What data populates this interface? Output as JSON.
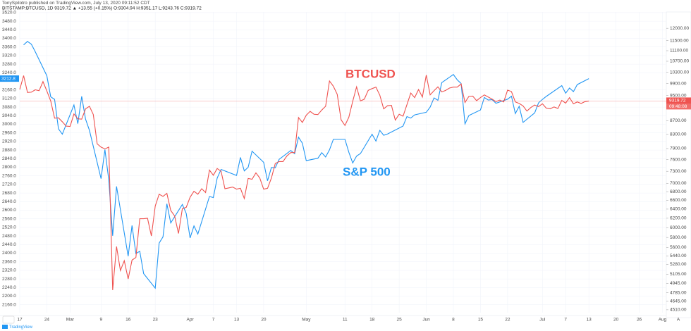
{
  "header": {
    "author_line": "TonySpilotro published on TradingView.com, July 13, 2020 09:11:52 CDT",
    "symbol_line": "BITSTAMP:BTCUSD, 1D  9319.72 ▲ +13.55 (+0.15%)  O:9304.94 H:9351.17 L:9243.76 C:9319.72"
  },
  "footer": {
    "brand": "TradingView",
    "scale_button": "A",
    "countdown": "09:48:08"
  },
  "chart_data": {
    "type": "line",
    "grid": true,
    "y2scale": "log",
    "xlim": [
      "2020-02-17",
      "2020-08-02"
    ],
    "xticks": [
      {
        "value": "2020-02-17",
        "label": "17"
      },
      {
        "value": "2020-02-24",
        "label": "24"
      },
      {
        "value": "2020-03-01",
        "label": "Mar"
      },
      {
        "value": "2020-03-09",
        "label": "9"
      },
      {
        "value": "2020-03-16",
        "label": "16"
      },
      {
        "value": "2020-03-23",
        "label": "23"
      },
      {
        "value": "2020-04-01",
        "label": "Apr"
      },
      {
        "value": "2020-04-07",
        "label": "7"
      },
      {
        "value": "2020-04-13",
        "label": "13"
      },
      {
        "value": "2020-04-20",
        "label": "20"
      },
      {
        "value": "2020-05-01",
        "label": "May"
      },
      {
        "value": "2020-05-11",
        "label": "11"
      },
      {
        "value": "2020-05-18",
        "label": "18"
      },
      {
        "value": "2020-05-25",
        "label": "25"
      },
      {
        "value": "2020-06-01",
        "label": "Jun"
      },
      {
        "value": "2020-06-08",
        "label": "8"
      },
      {
        "value": "2020-06-15",
        "label": "15"
      },
      {
        "value": "2020-06-22",
        "label": "22"
      },
      {
        "value": "2020-07-01",
        "label": "Jul"
      },
      {
        "value": "2020-07-07",
        "label": "7"
      },
      {
        "value": "2020-07-13",
        "label": "13"
      },
      {
        "value": "2020-07-20",
        "label": "20"
      },
      {
        "value": "2020-07-26",
        "label": "26"
      },
      {
        "value": "2020-08-01",
        "label": "Aug"
      }
    ],
    "ylim": [
      2123,
      3523
    ],
    "yticks": [
      {
        "value": 3520,
        "label": "3520.0"
      },
      {
        "value": 3480,
        "label": "3480.0"
      },
      {
        "value": 3440,
        "label": "3440.0"
      },
      {
        "value": 3400,
        "label": "3400.0"
      },
      {
        "value": 3360,
        "label": "3360.0"
      },
      {
        "value": 3320,
        "label": "3320.0"
      },
      {
        "value": 3280,
        "label": "3280.0"
      },
      {
        "value": 3240,
        "label": "3240.0"
      },
      {
        "value": 3160,
        "label": "3160.0"
      },
      {
        "value": 3120,
        "label": "3120.0"
      },
      {
        "value": 3080,
        "label": "3080.0"
      },
      {
        "value": 3040,
        "label": "3040.0"
      },
      {
        "value": 3000,
        "label": "3000.0"
      },
      {
        "value": 2960,
        "label": "2960.0"
      },
      {
        "value": 2920,
        "label": "2920.0"
      },
      {
        "value": 2880,
        "label": "2880.0"
      },
      {
        "value": 2840,
        "label": "2840.0"
      },
      {
        "value": 2800,
        "label": "2800.0"
      },
      {
        "value": 2760,
        "label": "2760.0"
      },
      {
        "value": 2720,
        "label": "2720.0"
      },
      {
        "value": 2680,
        "label": "2680.0"
      },
      {
        "value": 2640,
        "label": "2640.0"
      },
      {
        "value": 2600,
        "label": "2600.0"
      },
      {
        "value": 2560,
        "label": "2560.0"
      },
      {
        "value": 2520,
        "label": "2520.0"
      },
      {
        "value": 2480,
        "label": "2480.0"
      },
      {
        "value": 2440,
        "label": "2440.0"
      },
      {
        "value": 2400,
        "label": "2400.0"
      },
      {
        "value": 2360,
        "label": "2360.0"
      },
      {
        "value": 2320,
        "label": "2320.0"
      },
      {
        "value": 2280,
        "label": "2280.0"
      },
      {
        "value": 2240,
        "label": "2240.0"
      },
      {
        "value": 2200,
        "label": "2200.0"
      },
      {
        "value": 2160,
        "label": "2160.0"
      }
    ],
    "y2lim": [
      4465,
      12700
    ],
    "y2ticks": [
      {
        "value": 12000,
        "label": "12000.00"
      },
      {
        "value": 11500,
        "label": "11500.00"
      },
      {
        "value": 11100,
        "label": "11100.00"
      },
      {
        "value": 10700,
        "label": "10700.00"
      },
      {
        "value": 10300,
        "label": "10300.00"
      },
      {
        "value": 9900,
        "label": "9900.00"
      },
      {
        "value": 9500,
        "label": "9500.00"
      },
      {
        "value": 8700,
        "label": "8700.00"
      },
      {
        "value": 8300,
        "label": "8300.00"
      },
      {
        "value": 7900,
        "label": "7900.00"
      },
      {
        "value": 7600,
        "label": "7600.00"
      },
      {
        "value": 7300,
        "label": "7300.00"
      },
      {
        "value": 7000,
        "label": "7000.00"
      },
      {
        "value": 6800,
        "label": "6800.00"
      },
      {
        "value": 6600,
        "label": "6600.00"
      },
      {
        "value": 6400,
        "label": "6400.00"
      },
      {
        "value": 6200,
        "label": "6200.00"
      },
      {
        "value": 6000,
        "label": "6000.00"
      },
      {
        "value": 5800,
        "label": "5800.00"
      },
      {
        "value": 5600,
        "label": "5600.00"
      },
      {
        "value": 5440,
        "label": "5440.00"
      },
      {
        "value": 5280,
        "label": "5280.00"
      },
      {
        "value": 5105,
        "label": "5105.00"
      },
      {
        "value": 4945,
        "label": "4945.00"
      },
      {
        "value": 4785,
        "label": "4785.00"
      },
      {
        "value": 4645,
        "label": "4645.00"
      },
      {
        "value": 4510,
        "label": "4510.00"
      }
    ],
    "series": [
      {
        "name": "S&P 500",
        "color": "#2196f3",
        "x": [
          "2020-02-18",
          "2020-02-19",
          "2020-02-20",
          "2020-02-21",
          "2020-02-24",
          "2020-02-25",
          "2020-02-26",
          "2020-02-27",
          "2020-02-28",
          "2020-03-02",
          "2020-03-03",
          "2020-03-04",
          "2020-03-05",
          "2020-03-06",
          "2020-03-09",
          "2020-03-10",
          "2020-03-11",
          "2020-03-12",
          "2020-03-13",
          "2020-03-16",
          "2020-03-17",
          "2020-03-18",
          "2020-03-19",
          "2020-03-20",
          "2020-03-23",
          "2020-03-24",
          "2020-03-25",
          "2020-03-26",
          "2020-03-27",
          "2020-03-30",
          "2020-03-31",
          "2020-04-01",
          "2020-04-02",
          "2020-04-03",
          "2020-04-06",
          "2020-04-07",
          "2020-04-08",
          "2020-04-09",
          "2020-04-13",
          "2020-04-14",
          "2020-04-15",
          "2020-04-16",
          "2020-04-17",
          "2020-04-20",
          "2020-04-21",
          "2020-04-22",
          "2020-04-23",
          "2020-04-24",
          "2020-04-27",
          "2020-04-28",
          "2020-04-29",
          "2020-04-30",
          "2020-05-01",
          "2020-05-04",
          "2020-05-05",
          "2020-05-06",
          "2020-05-07",
          "2020-05-08",
          "2020-05-11",
          "2020-05-12",
          "2020-05-13",
          "2020-05-14",
          "2020-05-15",
          "2020-05-18",
          "2020-05-19",
          "2020-05-20",
          "2020-05-21",
          "2020-05-22",
          "2020-05-26",
          "2020-05-27",
          "2020-05-28",
          "2020-05-29",
          "2020-06-01",
          "2020-06-02",
          "2020-06-03",
          "2020-06-04",
          "2020-06-05",
          "2020-06-08",
          "2020-06-09",
          "2020-06-10",
          "2020-06-11",
          "2020-06-12",
          "2020-06-15",
          "2020-06-16",
          "2020-06-17",
          "2020-06-18",
          "2020-06-19",
          "2020-06-22",
          "2020-06-23",
          "2020-06-24",
          "2020-06-25",
          "2020-06-26",
          "2020-06-29",
          "2020-06-30",
          "2020-07-01",
          "2020-07-02",
          "2020-07-06",
          "2020-07-07",
          "2020-07-08",
          "2020-07-09",
          "2020-07-10",
          "2020-07-13"
        ],
        "values": [
          3370,
          3386,
          3373,
          3338,
          3226,
          3128,
          3116,
          2979,
          2954,
          3090,
          3003,
          3130,
          3024,
          2972,
          2747,
          2882,
          2741,
          2481,
          2711,
          2386,
          2529,
          2398,
          2409,
          2305,
          2237,
          2447,
          2476,
          2630,
          2541,
          2627,
          2585,
          2471,
          2527,
          2489,
          2664,
          2659,
          2750,
          2790,
          2762,
          2846,
          2783,
          2800,
          2875,
          2823,
          2737,
          2799,
          2798,
          2837,
          2878,
          2863,
          2940,
          2912,
          2831,
          2842,
          2868,
          2848,
          2881,
          2930,
          2930,
          2870,
          2820,
          2852,
          2864,
          2954,
          2922,
          2972,
          2949,
          2955,
          2992,
          3036,
          3029,
          3044,
          3056,
          3080,
          3123,
          3112,
          3194,
          3232,
          3207,
          3190,
          3002,
          3041,
          3067,
          3125,
          3113,
          3115,
          3098,
          3117,
          3131,
          3050,
          3084,
          3009,
          3053,
          3100,
          3116,
          3130,
          3180,
          3145,
          3169,
          3152,
          3185,
          3212.8
        ]
      },
      {
        "name": "BTCUSD",
        "color": "#ef5350",
        "axis": "y2",
        "x": [
          "2020-02-17",
          "2020-02-18",
          "2020-02-19",
          "2020-02-20",
          "2020-02-21",
          "2020-02-22",
          "2020-02-23",
          "2020-02-24",
          "2020-02-25",
          "2020-02-26",
          "2020-02-27",
          "2020-02-28",
          "2020-02-29",
          "2020-03-01",
          "2020-03-02",
          "2020-03-03",
          "2020-03-04",
          "2020-03-05",
          "2020-03-06",
          "2020-03-07",
          "2020-03-08",
          "2020-03-09",
          "2020-03-10",
          "2020-03-11",
          "2020-03-12",
          "2020-03-13",
          "2020-03-14",
          "2020-03-15",
          "2020-03-16",
          "2020-03-17",
          "2020-03-18",
          "2020-03-19",
          "2020-03-20",
          "2020-03-21",
          "2020-03-22",
          "2020-03-23",
          "2020-03-24",
          "2020-03-25",
          "2020-03-26",
          "2020-03-27",
          "2020-03-28",
          "2020-03-29",
          "2020-03-30",
          "2020-03-31",
          "2020-04-01",
          "2020-04-02",
          "2020-04-03",
          "2020-04-04",
          "2020-04-05",
          "2020-04-06",
          "2020-04-07",
          "2020-04-08",
          "2020-04-09",
          "2020-04-10",
          "2020-04-11",
          "2020-04-12",
          "2020-04-13",
          "2020-04-14",
          "2020-04-15",
          "2020-04-16",
          "2020-04-17",
          "2020-04-18",
          "2020-04-19",
          "2020-04-20",
          "2020-04-21",
          "2020-04-22",
          "2020-04-23",
          "2020-04-24",
          "2020-04-25",
          "2020-04-26",
          "2020-04-27",
          "2020-04-28",
          "2020-04-29",
          "2020-04-30",
          "2020-05-01",
          "2020-05-02",
          "2020-05-03",
          "2020-05-04",
          "2020-05-05",
          "2020-05-06",
          "2020-05-07",
          "2020-05-08",
          "2020-05-09",
          "2020-05-10",
          "2020-05-11",
          "2020-05-12",
          "2020-05-13",
          "2020-05-14",
          "2020-05-15",
          "2020-05-16",
          "2020-05-17",
          "2020-05-18",
          "2020-05-19",
          "2020-05-20",
          "2020-05-21",
          "2020-05-22",
          "2020-05-23",
          "2020-05-24",
          "2020-05-25",
          "2020-05-26",
          "2020-05-27",
          "2020-05-28",
          "2020-05-29",
          "2020-05-30",
          "2020-05-31",
          "2020-06-01",
          "2020-06-02",
          "2020-06-03",
          "2020-06-04",
          "2020-06-05",
          "2020-06-06",
          "2020-06-07",
          "2020-06-08",
          "2020-06-09",
          "2020-06-10",
          "2020-06-11",
          "2020-06-12",
          "2020-06-13",
          "2020-06-14",
          "2020-06-15",
          "2020-06-16",
          "2020-06-17",
          "2020-06-18",
          "2020-06-19",
          "2020-06-20",
          "2020-06-21",
          "2020-06-22",
          "2020-06-23",
          "2020-06-24",
          "2020-06-25",
          "2020-06-26",
          "2020-06-27",
          "2020-06-28",
          "2020-06-29",
          "2020-06-30",
          "2020-07-01",
          "2020-07-02",
          "2020-07-03",
          "2020-07-04",
          "2020-07-05",
          "2020-07-06",
          "2020-07-07",
          "2020-07-08",
          "2020-07-09",
          "2020-07-10",
          "2020-07-11",
          "2020-07-12",
          "2020-07-13"
        ],
        "values": [
          9700,
          10180,
          9600,
          9610,
          9690,
          9660,
          9970,
          9650,
          9320,
          8780,
          8790,
          8670,
          8540,
          8530,
          8910,
          8760,
          8750,
          9070,
          9150,
          8890,
          8030,
          7940,
          7890,
          7940,
          4830,
          5620,
          5170,
          5350,
          5020,
          5360,
          5410,
          6190,
          6190,
          6200,
          5830,
          6470,
          6740,
          6690,
          6760,
          6370,
          6250,
          5880,
          6410,
          6440,
          6670,
          6810,
          6740,
          6870,
          6780,
          7330,
          7200,
          7370,
          7300,
          6870,
          6890,
          6910,
          6860,
          6880,
          6640,
          7120,
          7100,
          7260,
          7130,
          6860,
          6880,
          7130,
          7500,
          7550,
          7550,
          7700,
          7790,
          7790,
          8800,
          8650,
          8870,
          8990,
          8900,
          8890,
          9030,
          9150,
          9990,
          9810,
          9540,
          8730,
          8560,
          8810,
          9310,
          9790,
          9320,
          9380,
          9670,
          9730,
          9780,
          9510,
          9070,
          9170,
          9180,
          8720,
          8900,
          8840,
          9200,
          9580,
          9430,
          9700,
          9450,
          10200,
          9520,
          9660,
          9790,
          9620,
          9670,
          9750,
          9780,
          9780,
          9890,
          9270,
          9470,
          9480,
          9330,
          9430,
          9520,
          9450,
          9380,
          9300,
          9350,
          9290,
          9680,
          9630,
          9290,
          9240,
          9160,
          9000,
          9110,
          9190,
          9140,
          9230,
          9090,
          9070,
          9130,
          9080,
          9340,
          9250,
          9430,
          9230,
          9290,
          9240,
          9300,
          9319.72
        ]
      }
    ]
  }
}
